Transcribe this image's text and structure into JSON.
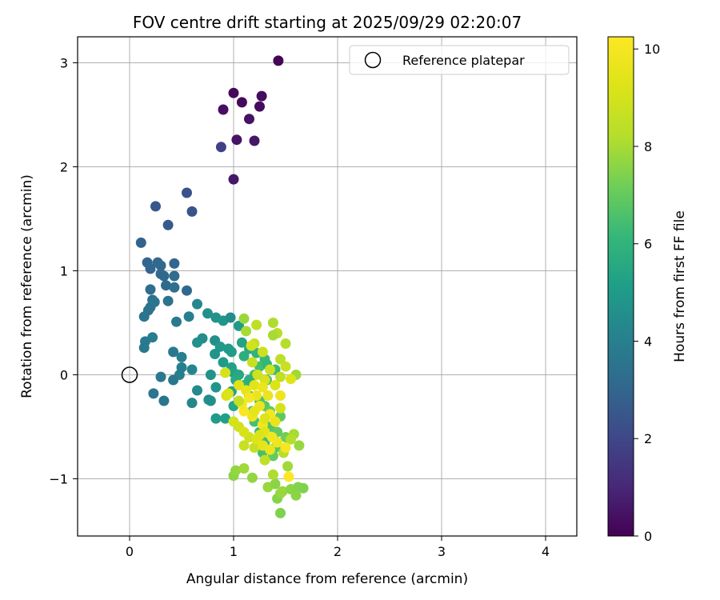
{
  "chart_data": {
    "type": "scatter",
    "title": "FOV centre drift starting at 2025/09/29 02:20:07",
    "xlabel": "Angular distance from reference (arcmin)",
    "ylabel": "Rotation from reference (arcmin)",
    "xlim": [
      -0.5,
      4.3
    ],
    "ylim": [
      -1.55,
      3.25
    ],
    "xticks": [
      0,
      1,
      2,
      3,
      4
    ],
    "xtick_labels": [
      "0",
      "1",
      "2",
      "3",
      "4"
    ],
    "yticks": [
      -1,
      0,
      1,
      2,
      3
    ],
    "ytick_labels": [
      "−1",
      "0",
      "1",
      "2",
      "3"
    ],
    "grid": true,
    "legend": {
      "location": "upper right",
      "entries": [
        {
          "label": "Reference platepar",
          "marker": "open-circle"
        }
      ]
    },
    "reference_point": {
      "x": 0,
      "y": 0
    },
    "colorbar": {
      "label": "Hours from first FF file",
      "colormap": "viridis",
      "range": [
        0,
        10.25
      ],
      "ticks": [
        0,
        2,
        4,
        6,
        8,
        10
      ],
      "tick_labels": [
        "0",
        "2",
        "4",
        "6",
        "8",
        "10"
      ]
    },
    "series": [
      {
        "points": [
          [
            1.43,
            3.02,
            0.05
          ],
          [
            1.0,
            2.71,
            0.15
          ],
          [
            1.08,
            2.62,
            0.2
          ],
          [
            1.27,
            2.68,
            0.3
          ],
          [
            1.25,
            2.58,
            0.25
          ],
          [
            0.9,
            2.55,
            0.4
          ],
          [
            1.15,
            2.46,
            0.45
          ],
          [
            1.03,
            2.26,
            0.5
          ],
          [
            1.2,
            2.25,
            0.55
          ],
          [
            0.88,
            2.19,
            1.8
          ],
          [
            1.0,
            1.88,
            0.6
          ],
          [
            0.55,
            1.75,
            2.3
          ],
          [
            0.25,
            1.62,
            2.5
          ],
          [
            0.6,
            1.57,
            2.4
          ],
          [
            0.37,
            1.44,
            2.6
          ],
          [
            0.11,
            1.27,
            2.9
          ],
          [
            0.17,
            1.08,
            3.0
          ],
          [
            0.27,
            1.08,
            3.1
          ],
          [
            0.2,
            1.02,
            3.0
          ],
          [
            0.3,
            1.05,
            3.1
          ],
          [
            0.43,
            1.07,
            3.0
          ],
          [
            0.3,
            0.97,
            3.2
          ],
          [
            0.33,
            0.95,
            3.1
          ],
          [
            0.43,
            0.95,
            3.3
          ],
          [
            0.35,
            0.86,
            3.2
          ],
          [
            0.43,
            0.84,
            3.4
          ],
          [
            0.55,
            0.81,
            3.1
          ],
          [
            0.2,
            0.82,
            3.3
          ],
          [
            0.22,
            0.72,
            3.4
          ],
          [
            0.37,
            0.71,
            3.5
          ],
          [
            0.2,
            0.65,
            3.5
          ],
          [
            0.24,
            0.7,
            3.6
          ],
          [
            0.18,
            0.62,
            3.5
          ],
          [
            0.14,
            0.56,
            3.6
          ],
          [
            0.65,
            0.68,
            4.3
          ],
          [
            0.75,
            0.59,
            4.6
          ],
          [
            0.57,
            0.56,
            4.0
          ],
          [
            0.45,
            0.51,
            3.8
          ],
          [
            0.83,
            0.55,
            4.7
          ],
          [
            0.9,
            0.52,
            4.8
          ],
          [
            0.97,
            0.55,
            4.5
          ],
          [
            1.05,
            0.47,
            5.0
          ],
          [
            0.15,
            0.32,
            3.8
          ],
          [
            0.14,
            0.26,
            3.7
          ],
          [
            0.22,
            0.36,
            3.9
          ],
          [
            0.42,
            0.22,
            3.7
          ],
          [
            0.5,
            0.17,
            4.0
          ],
          [
            0.7,
            0.35,
            4.5
          ],
          [
            0.65,
            0.31,
            4.6
          ],
          [
            0.82,
            0.33,
            4.6
          ],
          [
            0.87,
            0.27,
            4.9
          ],
          [
            0.95,
            0.25,
            5.0
          ],
          [
            0.98,
            0.22,
            5.1
          ],
          [
            0.82,
            0.2,
            4.8
          ],
          [
            0.9,
            0.12,
            5.0
          ],
          [
            0.6,
            0.05,
            4.2
          ],
          [
            0.5,
            0.07,
            4.0
          ],
          [
            0.48,
            0.0,
            4.0
          ],
          [
            0.3,
            -0.02,
            3.8
          ],
          [
            0.42,
            -0.05,
            3.7
          ],
          [
            0.23,
            -0.18,
            3.6
          ],
          [
            0.33,
            -0.25,
            3.6
          ],
          [
            0.6,
            -0.27,
            4.3
          ],
          [
            0.65,
            -0.15,
            4.4
          ],
          [
            0.78,
            -0.25,
            4.6
          ],
          [
            0.76,
            -0.24,
            4.5
          ],
          [
            0.83,
            -0.12,
            4.8
          ],
          [
            0.78,
            0.0,
            4.7
          ],
          [
            0.98,
            0.07,
            5.2
          ],
          [
            1.0,
            0.02,
            5.3
          ],
          [
            0.98,
            -0.16,
            5.4
          ],
          [
            1.0,
            -0.3,
            5.5
          ],
          [
            0.83,
            -0.42,
            5.0
          ],
          [
            0.92,
            -0.42,
            5.2
          ],
          [
            1.08,
            0.31,
            5.3
          ],
          [
            1.15,
            0.25,
            5.6
          ],
          [
            1.1,
            0.18,
            5.8
          ],
          [
            1.22,
            0.21,
            6.0
          ],
          [
            1.3,
            0.15,
            6.2
          ],
          [
            1.25,
            0.08,
            6.4
          ],
          [
            1.2,
            0.0,
            6.5
          ],
          [
            1.32,
            -0.05,
            6.6
          ],
          [
            1.1,
            -0.1,
            6.0
          ],
          [
            1.15,
            -0.2,
            6.3
          ],
          [
            1.25,
            -0.25,
            6.6
          ],
          [
            1.3,
            -0.3,
            6.8
          ],
          [
            1.35,
            -0.35,
            7.0
          ],
          [
            1.2,
            -0.45,
            6.5
          ],
          [
            1.35,
            -0.5,
            6.7
          ],
          [
            1.42,
            -0.55,
            7.0
          ],
          [
            1.25,
            -0.55,
            6.2
          ],
          [
            1.3,
            -0.65,
            6.4
          ],
          [
            1.4,
            -0.7,
            6.8
          ],
          [
            1.38,
            -0.78,
            7.0
          ],
          [
            1.28,
            -0.75,
            6.5
          ],
          [
            1.5,
            -0.6,
            7.2
          ],
          [
            1.05,
            0.0,
            5.5
          ],
          [
            1.15,
            -0.05,
            5.8
          ],
          [
            1.32,
            0.1,
            6.1
          ],
          [
            1.4,
            0.05,
            6.3
          ],
          [
            1.02,
            -0.05,
            5.6
          ],
          [
            1.18,
            -0.35,
            5.9
          ],
          [
            1.45,
            -0.4,
            6.9
          ],
          [
            1.1,
            0.54,
            7.8
          ],
          [
            1.12,
            0.42,
            8.0
          ],
          [
            1.22,
            0.48,
            8.4
          ],
          [
            1.38,
            0.5,
            8.1
          ],
          [
            1.42,
            0.4,
            8.3
          ],
          [
            1.38,
            0.38,
            8.0
          ],
          [
            1.5,
            0.3,
            8.2
          ],
          [
            1.2,
            0.3,
            8.6
          ],
          [
            1.28,
            0.22,
            8.8
          ],
          [
            1.17,
            0.28,
            9.0
          ],
          [
            1.45,
            0.15,
            8.4
          ],
          [
            1.5,
            0.08,
            8.7
          ],
          [
            1.6,
            0.0,
            7.9
          ],
          [
            1.45,
            -0.02,
            8.5
          ],
          [
            1.55,
            -0.04,
            9.3
          ],
          [
            1.0,
            -0.97,
            7.6
          ],
          [
            1.02,
            -0.92,
            7.7
          ],
          [
            1.1,
            -0.9,
            7.9
          ],
          [
            1.18,
            -0.99,
            7.7
          ],
          [
            1.33,
            -1.08,
            7.8
          ],
          [
            1.4,
            -1.05,
            7.6
          ],
          [
            1.42,
            -1.19,
            7.5
          ],
          [
            1.45,
            -1.14,
            7.7
          ],
          [
            1.47,
            -1.12,
            7.8
          ],
          [
            1.45,
            -1.33,
            7.4
          ],
          [
            1.55,
            -1.1,
            7.6
          ],
          [
            1.62,
            -1.08,
            7.5
          ],
          [
            1.67,
            -1.09,
            7.4
          ],
          [
            1.6,
            -1.16,
            7.6
          ],
          [
            1.52,
            -0.88,
            7.9
          ],
          [
            1.58,
            -0.57,
            8.0
          ],
          [
            1.63,
            -0.68,
            7.8
          ],
          [
            1.55,
            -0.62,
            8.2
          ],
          [
            1.38,
            -0.96,
            8.1
          ],
          [
            1.48,
            -0.75,
            8.3
          ],
          [
            1.3,
            -0.82,
            8.5
          ],
          [
            1.2,
            -0.7,
            8.6
          ],
          [
            1.1,
            -0.68,
            8.7
          ],
          [
            1.15,
            -0.6,
            8.8
          ],
          [
            1.05,
            -0.5,
            8.9
          ],
          [
            1.0,
            -0.45,
            9.0
          ],
          [
            0.93,
            -0.2,
            9.1
          ],
          [
            0.95,
            -0.18,
            9.2
          ],
          [
            0.92,
            0.02,
            9.0
          ],
          [
            1.05,
            -0.1,
            9.3
          ],
          [
            1.12,
            -0.15,
            9.5
          ],
          [
            1.22,
            -0.2,
            9.6
          ],
          [
            1.25,
            -0.3,
            9.7
          ],
          [
            1.18,
            -0.4,
            9.8
          ],
          [
            1.28,
            -0.48,
            9.9
          ],
          [
            1.35,
            -0.38,
            10.0
          ],
          [
            1.4,
            -0.45,
            9.6
          ],
          [
            1.3,
            -0.55,
            9.4
          ],
          [
            1.22,
            -0.62,
            9.3
          ],
          [
            1.28,
            -0.68,
            9.5
          ],
          [
            1.35,
            -0.72,
            9.7
          ],
          [
            1.42,
            -0.65,
            9.8
          ],
          [
            1.5,
            -0.7,
            10.0
          ],
          [
            1.53,
            -0.98,
            10.2
          ],
          [
            1.37,
            -0.6,
            9.9
          ],
          [
            1.1,
            -0.35,
            10.1
          ],
          [
            1.2,
            -0.1,
            9.4
          ],
          [
            1.33,
            -0.2,
            9.6
          ],
          [
            1.45,
            -0.2,
            9.8
          ],
          [
            1.45,
            -0.32,
            9.0
          ],
          [
            1.4,
            -0.1,
            9.2
          ],
          [
            1.3,
            -0.05,
            9.1
          ],
          [
            1.23,
            0.0,
            8.9
          ],
          [
            1.35,
            0.05,
            8.8
          ],
          [
            1.28,
            -0.12,
            9.7
          ],
          [
            1.15,
            -0.22,
            10.0
          ],
          [
            1.08,
            -0.28,
            9.9
          ],
          [
            1.2,
            -0.35,
            9.5
          ],
          [
            1.3,
            -0.42,
            9.3
          ],
          [
            1.25,
            -0.58,
            9.2
          ],
          [
            1.1,
            -0.55,
            9.1
          ],
          [
            1.05,
            -0.25,
            8.5
          ],
          [
            1.18,
            0.12,
            8.7
          ]
        ]
      }
    ]
  }
}
